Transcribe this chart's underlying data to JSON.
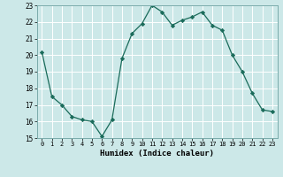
{
  "x": [
    0,
    1,
    2,
    3,
    4,
    5,
    6,
    7,
    8,
    9,
    10,
    11,
    12,
    13,
    14,
    15,
    16,
    17,
    18,
    19,
    20,
    21,
    22,
    23
  ],
  "y": [
    20.2,
    17.5,
    17.0,
    16.3,
    16.1,
    16.0,
    15.1,
    16.1,
    19.8,
    21.3,
    21.9,
    23.0,
    22.6,
    21.8,
    22.1,
    22.3,
    22.6,
    21.8,
    21.5,
    20.0,
    19.0,
    17.7,
    16.7,
    16.6
  ],
  "ylim": [
    15,
    23
  ],
  "yticks": [
    15,
    16,
    17,
    18,
    19,
    20,
    21,
    22,
    23
  ],
  "xticks": [
    0,
    1,
    2,
    3,
    4,
    5,
    6,
    7,
    8,
    9,
    10,
    11,
    12,
    13,
    14,
    15,
    16,
    17,
    18,
    19,
    20,
    21,
    22,
    23
  ],
  "xlabel": "Humidex (Indice chaleur)",
  "line_color": "#1a6b5a",
  "marker": "D",
  "marker_size": 2.2,
  "bg_color": "#cce8e8",
  "grid_color": "#ffffff",
  "spine_color": "#7aabab"
}
